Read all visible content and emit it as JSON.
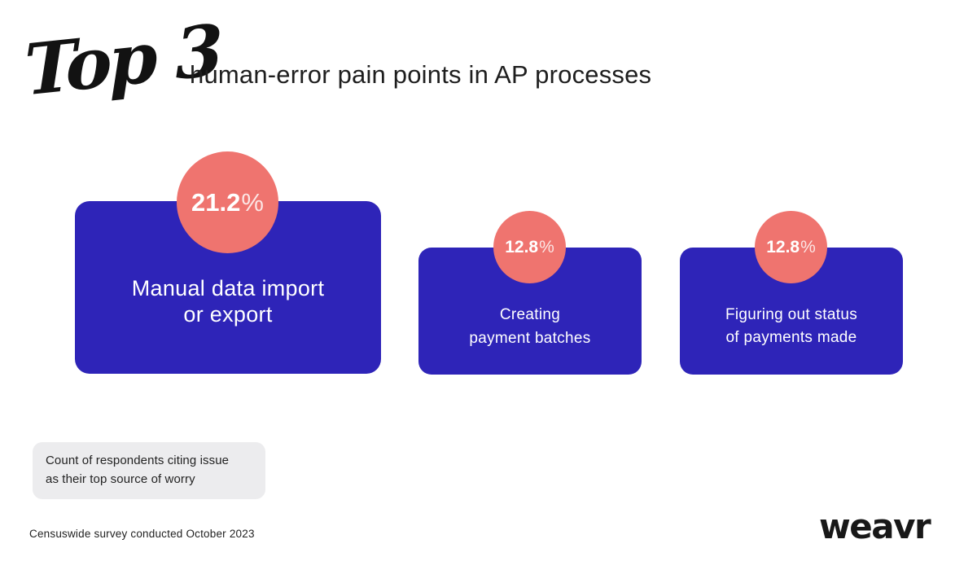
{
  "header": {
    "badge": "Top 3",
    "title": "human-error pain points in AP processes"
  },
  "cards": [
    {
      "value": "21.2",
      "suffix": "%",
      "label_line1": "Manual data import",
      "label_line2": "or export"
    },
    {
      "value": "12.8",
      "suffix": "%",
      "label_line1": "Creating",
      "label_line2": "payment batches"
    },
    {
      "value": "12.8",
      "suffix": "%",
      "label_line1": "Figuring out status",
      "label_line2": "of payments made"
    }
  ],
  "note": {
    "line1": "Count of respondents citing issue",
    "line2": "as their top source of worry"
  },
  "footer": {
    "source": "Censuswide survey conducted October 2023",
    "logo": "weavr"
  },
  "colors": {
    "card-bg": "#2e24b8",
    "bubble-bg": "#ef746f",
    "note-bg": "#ececee",
    "text-dark": "#1f1f1f",
    "text-light": "#ffffff"
  },
  "chart_data": {
    "type": "bar",
    "title": "Top 3 human-error pain points in AP processes",
    "categories": [
      "Manual data import or export",
      "Creating payment batches",
      "Figuring out status of payments made"
    ],
    "values": [
      21.2,
      12.8,
      12.8
    ],
    "unit": "%",
    "value_labels": [
      "21.2%",
      "12.8%",
      "12.8%"
    ],
    "annotation": "Count of respondents citing issue as their top source of worry",
    "source": "Censuswide survey conducted October 2023",
    "legend": false,
    "grid": false
  }
}
